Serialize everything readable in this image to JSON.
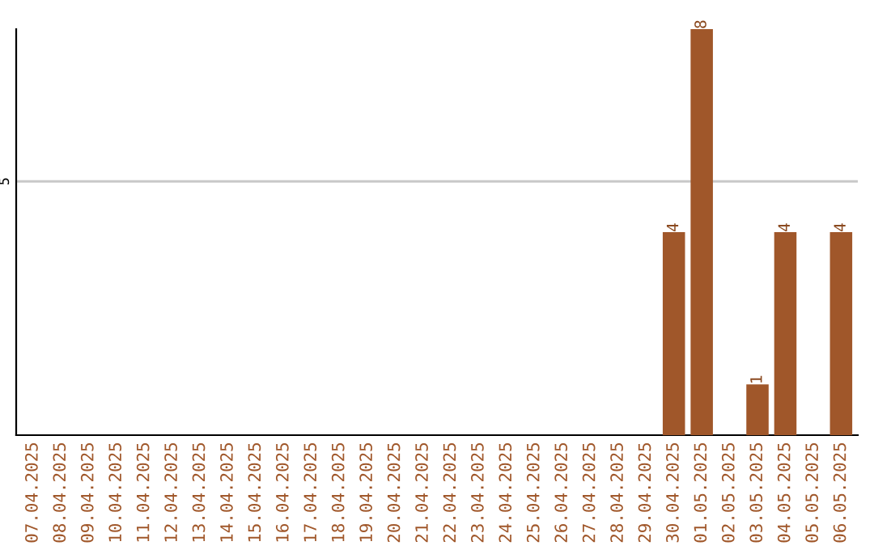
{
  "chart_data": {
    "type": "bar",
    "categories": [
      "07.04.2025",
      "08.04.2025",
      "09.04.2025",
      "10.04.2025",
      "11.04.2025",
      "12.04.2025",
      "13.04.2025",
      "14.04.2025",
      "15.04.2025",
      "16.04.2025",
      "17.04.2025",
      "18.04.2025",
      "19.04.2025",
      "20.04.2025",
      "21.04.2025",
      "22.04.2025",
      "23.04.2025",
      "24.04.2025",
      "25.04.2025",
      "26.04.2025",
      "27.04.2025",
      "28.04.2025",
      "29.04.2025",
      "30.04.2025",
      "01.05.2025",
      "02.05.2025",
      "03.05.2025",
      "04.05.2025",
      "05.05.2025",
      "06.05.2025"
    ],
    "values": [
      null,
      null,
      null,
      null,
      null,
      null,
      null,
      null,
      null,
      null,
      null,
      null,
      null,
      null,
      null,
      null,
      null,
      null,
      null,
      null,
      null,
      null,
      null,
      4,
      8,
      null,
      1,
      4,
      null,
      4
    ],
    "color": "#a0572a",
    "ylim": [
      0,
      8
    ],
    "yticks": [
      5
    ],
    "grid": "y",
    "data_labels": true
  }
}
